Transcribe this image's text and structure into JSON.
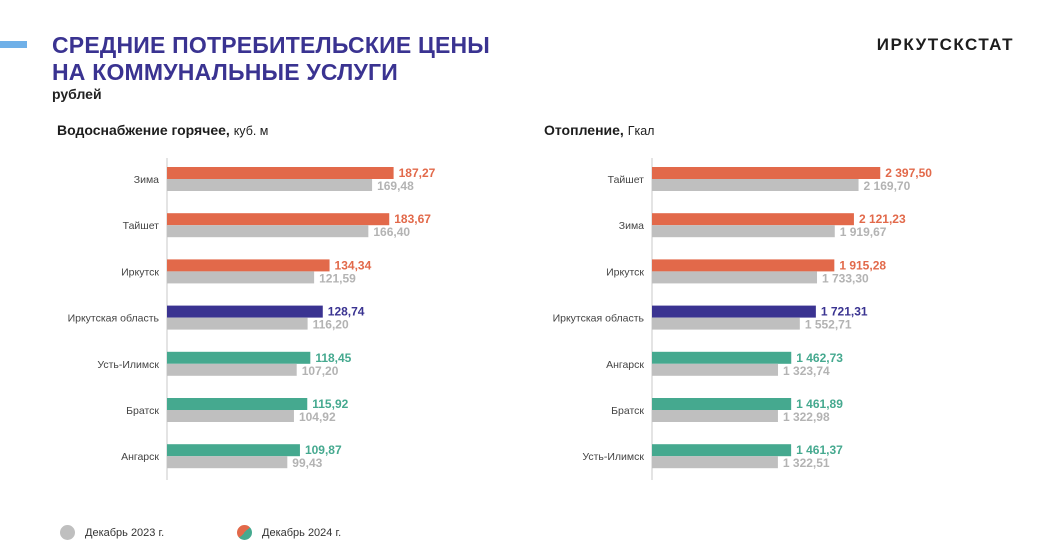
{
  "header": {
    "title_line1": "СРЕДНИЕ ПОТРЕБИТЕЛЬСКИЕ ЦЕНЫ",
    "title_line2": "НА КОММУНАЛЬНЫЕ УСЛУГИ",
    "unit": "рублей",
    "brand": "ИРКУТСКСТАТ"
  },
  "colors": {
    "above": "#e2694a",
    "region": "#3a3391",
    "below": "#45a98f",
    "prev": "#bfbfbf",
    "prev_label": "#b3b3b3"
  },
  "legend": {
    "prev": "Декабрь 2023 г.",
    "curr": "Декабрь 2024 г."
  },
  "chart_data": [
    {
      "type": "bar",
      "orientation": "horizontal",
      "title": "Водоснабжение горячее,",
      "unit": "куб. м",
      "categories": [
        "Зима",
        "Тайшет",
        "Иркутск",
        "Иркутская область",
        "Усть-Илимск",
        "Братск",
        "Ангарск"
      ],
      "xlim": [
        0,
        200
      ],
      "series": [
        {
          "name": "Декабрь 2024 г.",
          "values": [
            187.27,
            183.67,
            134.34,
            128.74,
            118.45,
            115.92,
            109.87
          ],
          "labels": [
            "187,27",
            "183,67",
            "134,34",
            "128,74",
            "118,45",
            "115,92",
            "109,87"
          ],
          "groups": [
            "above",
            "above",
            "above",
            "region",
            "below",
            "below",
            "below"
          ]
        },
        {
          "name": "Декабрь 2023 г.",
          "values": [
            169.48,
            166.4,
            121.59,
            116.2,
            107.2,
            104.92,
            99.43
          ],
          "labels": [
            "169,48",
            "166,40",
            "121,59",
            "116,20",
            "107,20",
            "104,92",
            "99,43"
          ]
        }
      ]
    },
    {
      "type": "bar",
      "orientation": "horizontal",
      "title": "Отопление,",
      "unit": "Гкал",
      "categories": [
        "Тайшет",
        "Зима",
        "Иркутск",
        "Иркутская область",
        "Ангарск",
        "Братск",
        "Усть-Илимск"
      ],
      "xlim": [
        0,
        2500
      ],
      "series": [
        {
          "name": "Декабрь 2024 г.",
          "values": [
            2397.5,
            2121.23,
            1915.28,
            1721.31,
            1462.73,
            1461.89,
            1461.37
          ],
          "labels": [
            "2 397,50",
            "2 121,23",
            "1 915,28",
            "1 721,31",
            "1 462,73",
            "1 461,89",
            "1 461,37"
          ],
          "groups": [
            "above",
            "above",
            "above",
            "region",
            "below",
            "below",
            "below"
          ]
        },
        {
          "name": "Декабрь 2023 г.",
          "values": [
            2169.7,
            1919.67,
            1733.3,
            1552.71,
            1323.74,
            1322.98,
            1322.51
          ],
          "labels": [
            "2 169,70",
            "1 919,67",
            "1 733,30",
            "1 552,71",
            "1 323,74",
            "1 322,98",
            "1 322,51"
          ]
        }
      ]
    }
  ]
}
